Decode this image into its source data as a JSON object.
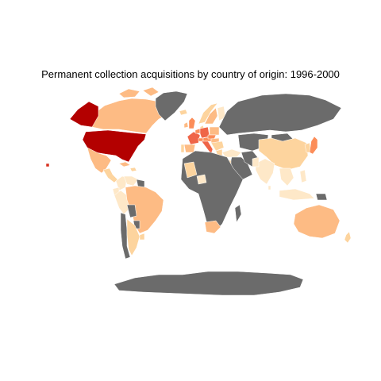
{
  "title": "Permanent collection acquisitions by country of origin: 1996-2000",
  "colors": {
    "background": "#ffffff",
    "no_data": "#6b6b6b",
    "scale": [
      "#fee8c8",
      "#fdd49e",
      "#fdbb84",
      "#fc8d59",
      "#ef6548",
      "#d7301f",
      "#b30000"
    ]
  },
  "chart_data": {
    "type": "choropleth",
    "projection": "miller",
    "title": "Permanent collection acquisitions by country of origin: 1996-2000",
    "legend": "none",
    "regions": [
      {
        "name": "Canada",
        "level": 3
      },
      {
        "name": "Alaska",
        "level": 7
      },
      {
        "name": "Greenland",
        "level": 0
      },
      {
        "name": "United States",
        "level": 7
      },
      {
        "name": "Mexico",
        "level": 3
      },
      {
        "name": "Central America",
        "level": 2
      },
      {
        "name": "Cuba",
        "level": 3
      },
      {
        "name": "Caribbean",
        "level": 2
      },
      {
        "name": "Colombia",
        "level": 1
      },
      {
        "name": "Venezuela",
        "level": 1
      },
      {
        "name": "Guianas",
        "level": 0
      },
      {
        "name": "Ecuador",
        "level": 1
      },
      {
        "name": "Peru",
        "level": 1
      },
      {
        "name": "Brazil",
        "level": 3
      },
      {
        "name": "Bolivia",
        "level": 0
      },
      {
        "name": "Paraguay",
        "level": 0
      },
      {
        "name": "Uruguay",
        "level": 2
      },
      {
        "name": "Chile",
        "level": 0
      },
      {
        "name": "Argentina",
        "level": 2
      },
      {
        "name": "Iceland",
        "level": 2
      },
      {
        "name": "United Kingdom",
        "level": 4
      },
      {
        "name": "Ireland",
        "level": 3
      },
      {
        "name": "Norway",
        "level": 2
      },
      {
        "name": "Sweden",
        "level": 3
      },
      {
        "name": "Finland",
        "level": 1
      },
      {
        "name": "Denmark",
        "level": 2
      },
      {
        "name": "France",
        "level": 5
      },
      {
        "name": "Spain",
        "level": 3
      },
      {
        "name": "Portugal",
        "level": 2
      },
      {
        "name": "Benelux",
        "level": 4
      },
      {
        "name": "Germany",
        "level": 5
      },
      {
        "name": "Switzerland",
        "level": 4
      },
      {
        "name": "Austria",
        "level": 4
      },
      {
        "name": "Italy",
        "level": 5
      },
      {
        "name": "Poland",
        "level": 3
      },
      {
        "name": "Czech Republic",
        "level": 4
      },
      {
        "name": "Hungary",
        "level": 3
      },
      {
        "name": "Balkans",
        "level": 2
      },
      {
        "name": "Greece",
        "level": 2
      },
      {
        "name": "Russia",
        "level": 0
      },
      {
        "name": "Turkey",
        "level": 1
      },
      {
        "name": "Middle East",
        "level": 0
      },
      {
        "name": "Israel",
        "level": 2
      },
      {
        "name": "Iran",
        "level": 0
      },
      {
        "name": "Central Asia",
        "level": 0
      },
      {
        "name": "Mongolia",
        "level": 0
      },
      {
        "name": "China",
        "level": 2
      },
      {
        "name": "Korea",
        "level": 2
      },
      {
        "name": "Japan",
        "level": 4
      },
      {
        "name": "India",
        "level": 1
      },
      {
        "name": "Pakistan",
        "level": 1
      },
      {
        "name": "Sri Lanka",
        "level": 1
      },
      {
        "name": "Southeast Asia",
        "level": 1
      },
      {
        "name": "Indonesia",
        "level": 1
      },
      {
        "name": "Philippines",
        "level": 1
      },
      {
        "name": "Papua New Guinea",
        "level": 0
      },
      {
        "name": "Australia",
        "level": 3
      },
      {
        "name": "New Zealand",
        "level": 2
      },
      {
        "name": "Africa (other)",
        "level": 0
      },
      {
        "name": "Mali",
        "level": 2
      },
      {
        "name": "Nigeria",
        "level": 1
      },
      {
        "name": "South Africa",
        "level": 3
      },
      {
        "name": "Madagascar",
        "level": 0
      },
      {
        "name": "Antarctica",
        "level": 0
      },
      {
        "name": "Hawaii",
        "level": 6
      }
    ]
  }
}
